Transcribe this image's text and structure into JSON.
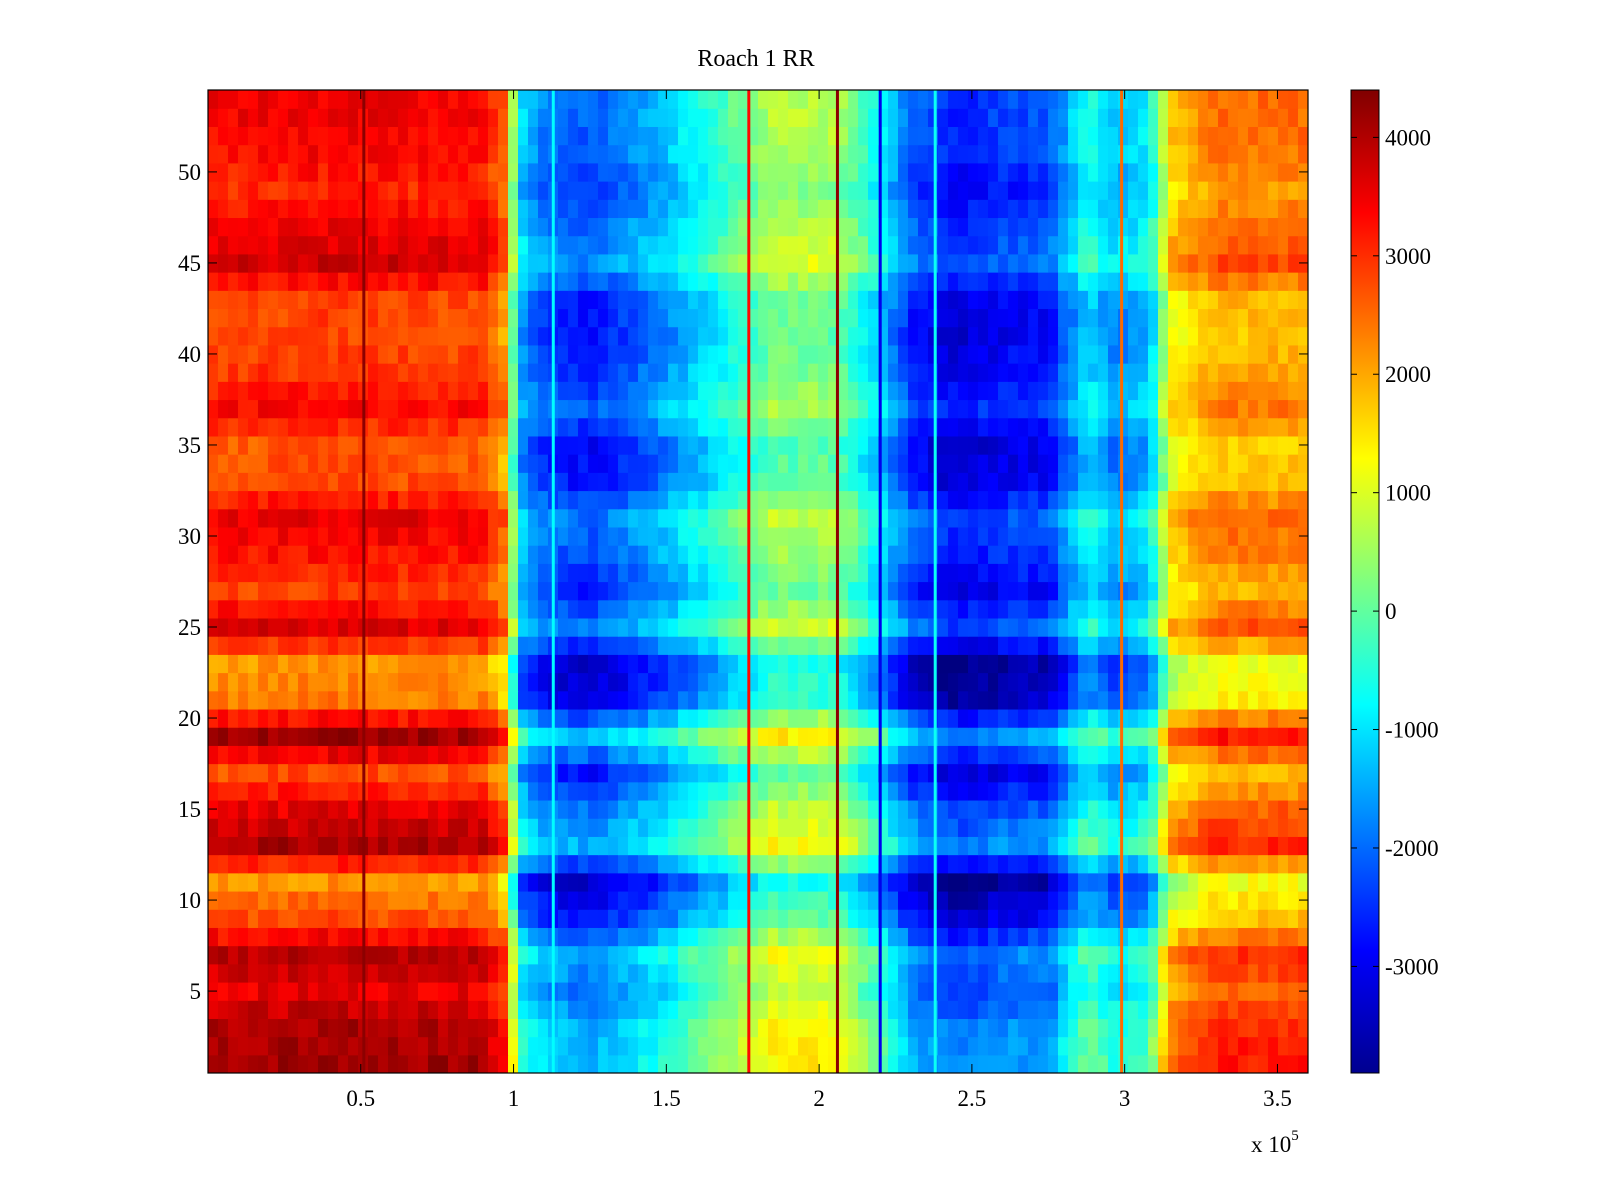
{
  "chart_data": {
    "type": "heatmap",
    "title": "Roach 1 RR",
    "xlabel": "",
    "ylabel": "",
    "x_exponent_label": "x 10",
    "x_exponent_power": "5",
    "xlim": [
      0,
      3.6
    ],
    "ylim": [
      0.5,
      54.5
    ],
    "x_ticks": [
      0.5,
      1,
      1.5,
      2,
      2.5,
      3,
      3.5
    ],
    "x_tick_labels": [
      "0.5",
      "1",
      "1.5",
      "2",
      "2.5",
      "3",
      "3.5"
    ],
    "y_ticks": [
      5,
      10,
      15,
      20,
      25,
      30,
      35,
      40,
      45,
      50
    ],
    "y_tick_labels": [
      "5",
      "10",
      "15",
      "20",
      "25",
      "30",
      "35",
      "40",
      "45",
      "50"
    ],
    "rows": 54,
    "colorbar": {
      "colormap": "jet",
      "clim": [
        -3900,
        4400
      ],
      "ticks": [
        4000,
        3000,
        2000,
        1000,
        0,
        -1000,
        -2000,
        -3000
      ],
      "tick_labels": [
        "4000",
        "3000",
        "2000",
        "1000",
        "0",
        "-1000",
        "-2000",
        "-3000"
      ]
    },
    "column_profile": {
      "x": [
        0.0,
        0.4,
        0.9,
        0.97,
        1.02,
        1.1,
        1.25,
        1.45,
        1.65,
        1.85,
        2.05,
        2.2,
        2.3,
        2.45,
        2.6,
        2.75,
        2.88,
        2.97,
        3.08,
        3.15,
        3.3,
        3.6
      ],
      "value": [
        3000,
        3100,
        3000,
        2200,
        -1400,
        -2200,
        -2500,
        -1800,
        -800,
        300,
        300,
        -1100,
        -2400,
        -3000,
        -2700,
        -2600,
        -900,
        -1600,
        -1200,
        1400,
        2100,
        2100
      ]
    },
    "row_offsets_y": [
      1,
      3,
      5,
      7,
      9,
      11,
      13,
      15,
      17,
      19,
      21,
      23,
      25,
      27,
      29,
      31,
      33,
      35,
      37,
      39,
      41,
      43,
      45,
      47,
      49,
      51,
      53
    ],
    "row_offsets_value": [
      1100,
      1000,
      500,
      900,
      -300,
      -900,
      1000,
      500,
      -300,
      1100,
      -700,
      -900,
      600,
      -200,
      200,
      500,
      -300,
      -400,
      300,
      -100,
      -300,
      -200,
      700,
      400,
      0,
      300,
      400
    ],
    "vertical_streaks": [
      {
        "x": 0.51,
        "value": 4300
      },
      {
        "x": 1.13,
        "value": -800
      },
      {
        "x": 1.77,
        "value": 3300
      },
      {
        "x": 2.06,
        "value": 4300
      },
      {
        "x": 2.2,
        "value": -3000
      },
      {
        "x": 2.38,
        "value": -700
      },
      {
        "x": 2.99,
        "value": 2500
      }
    ]
  }
}
